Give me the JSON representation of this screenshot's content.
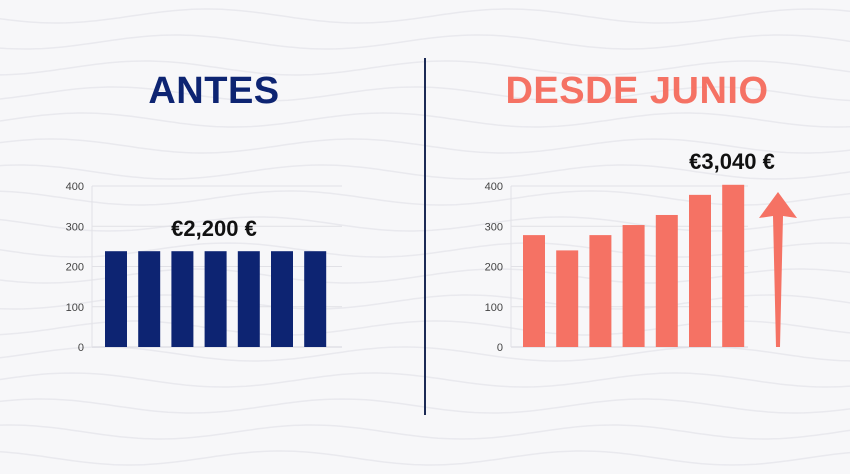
{
  "colors": {
    "background": "#f7f7f9",
    "left_title": "#0d2472",
    "right_title": "#f57264",
    "left_bars": "#0d2472",
    "right_bars": "#f57264",
    "divider": "#1c2a55"
  },
  "chart_data": [
    {
      "type": "bar",
      "title": "ANTES",
      "annotation": "€2,200 €",
      "y_ticks": [
        "0",
        "100",
        "200",
        "300",
        "400"
      ],
      "ylim": [
        0,
        400
      ],
      "grid": true,
      "values": [
        238,
        238,
        238,
        238,
        238,
        238,
        238
      ]
    },
    {
      "type": "bar",
      "title": "DESDE JUNIO",
      "annotation": "€3,040 €",
      "y_ticks": [
        "0",
        "100",
        "200",
        "300",
        "400"
      ],
      "ylim": [
        0,
        400
      ],
      "grid": true,
      "values": [
        278,
        240,
        278,
        303,
        328,
        378,
        403
      ],
      "trend_arrow": "up"
    }
  ]
}
